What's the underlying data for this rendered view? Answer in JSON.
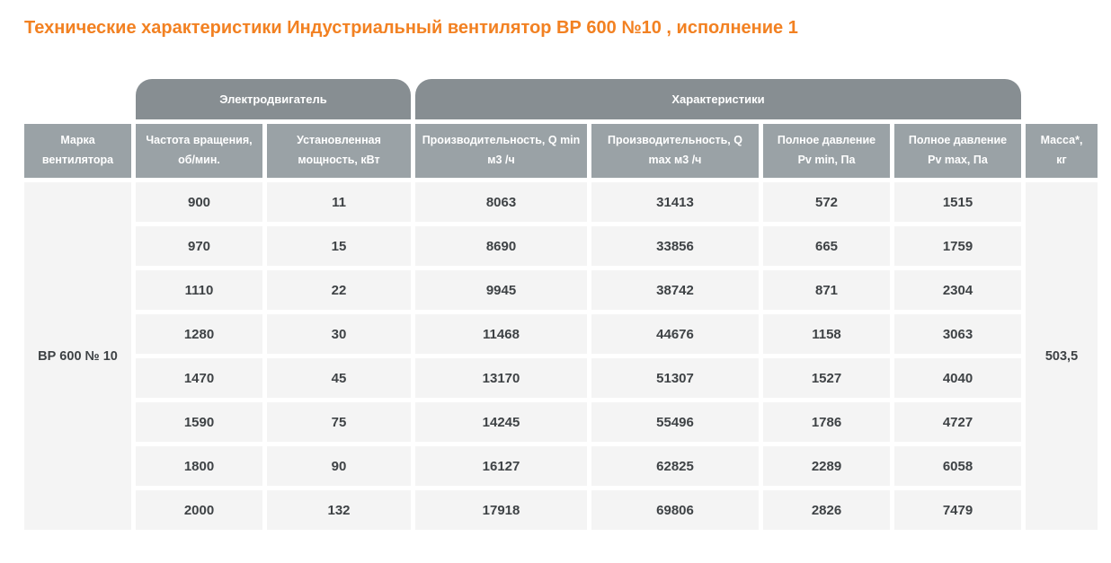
{
  "title": "Технические характеристики Индустриальный вентилятор ВР 600 №10 , исполнение 1",
  "colors": {
    "title_orange": "#f28122",
    "group_header_gray": "#878e92",
    "column_header_gray": "#9aa2a6",
    "cell_background": "#f4f4f4",
    "cell_text": "#3e4245"
  },
  "table": {
    "group_headers": {
      "motor": "Электродвигатель",
      "characteristics": "Характеристики"
    },
    "columns": [
      {
        "line1": "Марка",
        "line2": "вентилятора"
      },
      {
        "line1": "Частота вращения,",
        "line2": "об/мин."
      },
      {
        "line1": "Установленная",
        "line2": "мощность, кВт"
      },
      {
        "line1": "Производительность, Q min",
        "line2": "м3 /ч"
      },
      {
        "line1": "Производительность, Q",
        "line2": "max м3 /ч"
      },
      {
        "line1": "Полное давление",
        "line2": "Pv min, Па"
      },
      {
        "line1": "Полное давление",
        "line2": "Pv max, Па"
      },
      {
        "line1": "Масса*,",
        "line2": "кг"
      }
    ],
    "fan_model": "ВР 600 № 10",
    "mass": "503,5",
    "rows": [
      [
        "900",
        "11",
        "8063",
        "31413",
        "572",
        "1515"
      ],
      [
        "970",
        "15",
        "8690",
        "33856",
        "665",
        "1759"
      ],
      [
        "1110",
        "22",
        "9945",
        "38742",
        "871",
        "2304"
      ],
      [
        "1280",
        "30",
        "11468",
        "44676",
        "1158",
        "3063"
      ],
      [
        "1470",
        "45",
        "13170",
        "51307",
        "1527",
        "4040"
      ],
      [
        "1590",
        "75",
        "14245",
        "55496",
        "1786",
        "4727"
      ],
      [
        "1800",
        "90",
        "16127",
        "62825",
        "2289",
        "6058"
      ],
      [
        "2000",
        "132",
        "17918",
        "69806",
        "2826",
        "7479"
      ]
    ]
  }
}
